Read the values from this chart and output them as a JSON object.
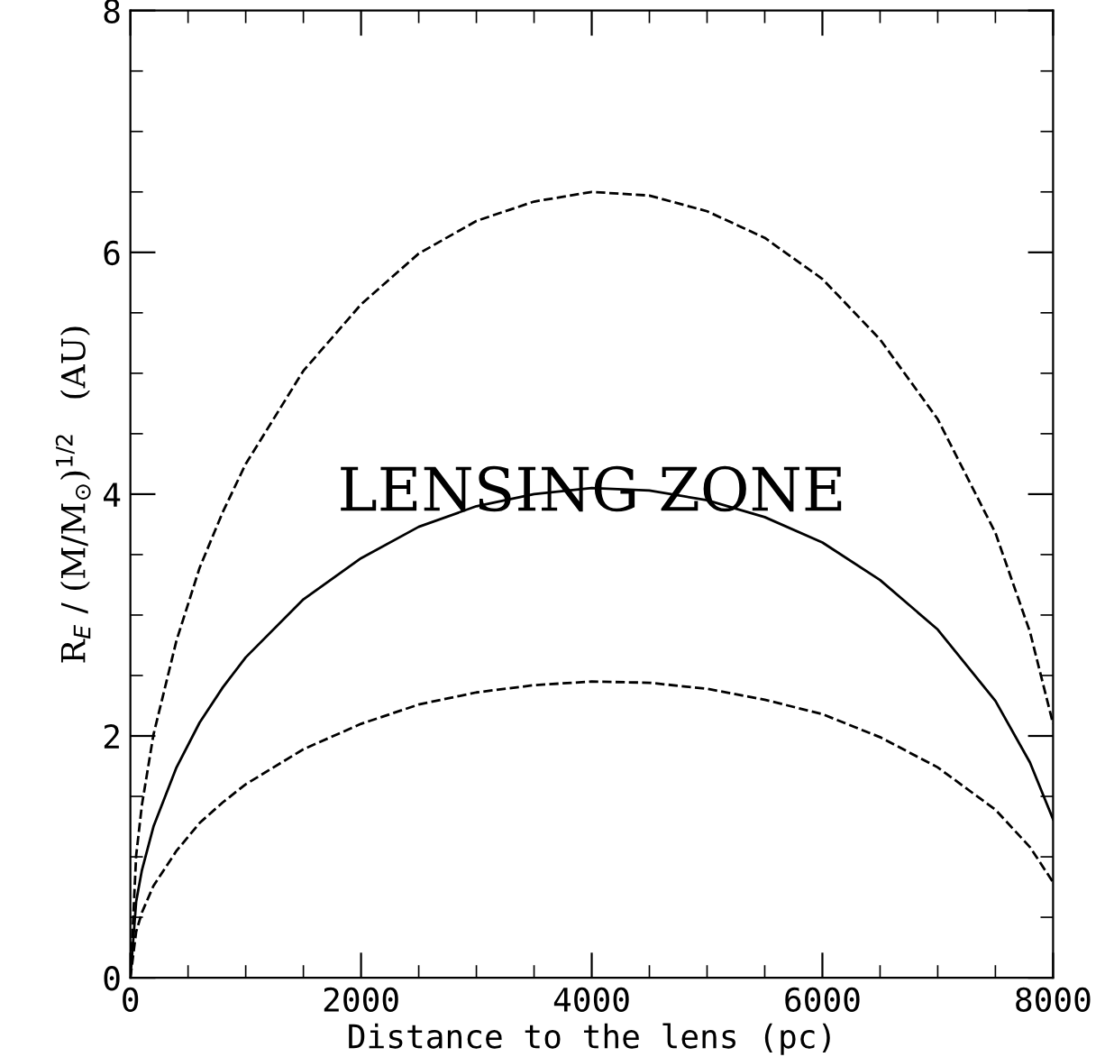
{
  "chart_data": {
    "type": "line",
    "xlabel": "Distance to the lens (pc)",
    "ylabel": "R$_{E}$ / (M/M$_{⊙}$)$^{1/2}$   (AU)",
    "annotations": [
      "LENSING ZONE"
    ],
    "x": [
      0,
      50,
      100,
      200,
      400,
      600,
      800,
      1000,
      1500,
      2000,
      2500,
      3000,
      3500,
      4000,
      4500,
      5000,
      5500,
      6000,
      6500,
      7000,
      7500,
      7800,
      8000
    ],
    "series": [
      {
        "color": "#000000",
        "line_style": "dashed",
        "values": [
          0,
          1.01,
          1.43,
          2.01,
          2.79,
          3.39,
          3.85,
          4.25,
          5.02,
          5.57,
          5.99,
          6.26,
          6.42,
          6.5,
          6.47,
          6.34,
          6.12,
          5.78,
          5.28,
          4.62,
          3.68,
          2.86,
          2.1
        ]
      },
      {
        "color": "#000000",
        "line_style": "solid",
        "values": [
          0,
          0.63,
          0.89,
          1.25,
          1.74,
          2.11,
          2.4,
          2.65,
          3.13,
          3.47,
          3.73,
          3.9,
          4.0,
          4.05,
          4.03,
          3.95,
          3.81,
          3.6,
          3.29,
          2.88,
          2.29,
          1.78,
          1.31
        ]
      },
      {
        "color": "#000000",
        "line_style": "dashed",
        "values": [
          0,
          0.38,
          0.54,
          0.76,
          1.05,
          1.28,
          1.45,
          1.6,
          1.89,
          2.1,
          2.26,
          2.36,
          2.42,
          2.45,
          2.44,
          2.39,
          2.3,
          2.18,
          1.99,
          1.74,
          1.39,
          1.08,
          0.79
        ]
      }
    ],
    "xlim": [
      0,
      8000
    ],
    "ylim": [
      0,
      8
    ],
    "xticks": [
      0,
      2000,
      4000,
      6000,
      8000
    ],
    "yticks": [
      0,
      2,
      4,
      6,
      8
    ],
    "grid": false,
    "legend": false,
    "marker": "none"
  }
}
